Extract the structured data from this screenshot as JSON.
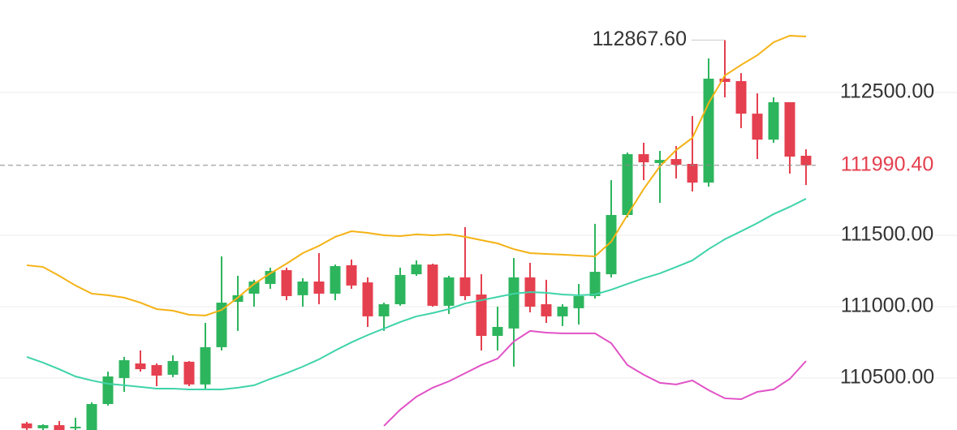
{
  "chart_data": {
    "type": "candlestick",
    "ylim": [
      110136,
      113148
    ],
    "yticks": [
      {
        "value": 110500,
        "label": "110500.00"
      },
      {
        "value": 111000,
        "label": "111000.00"
      },
      {
        "value": 111500,
        "label": "111500.00"
      },
      {
        "value": 112500,
        "label": "112500.00"
      }
    ],
    "grid": true,
    "up_color": "#2db55d",
    "down_color": "#e5404f",
    "open": [
      110182,
      110148,
      110170,
      110148,
      110136,
      110318,
      110500,
      110602,
      110591,
      110523,
      110614,
      110455,
      110716,
      111034,
      111091,
      111159,
      111256,
      111080,
      111176,
      111091,
      111290,
      111170,
      110932,
      111017,
      111227,
      111295,
      111006,
      111205,
      111085,
      110795,
      110847,
      111205,
      111017,
      110932,
      110989,
      111074,
      111227,
      111642,
      112068,
      112006,
      112034,
      112000,
      111869,
      112597,
      112580,
      112352,
      112170,
      112432,
      112057
    ],
    "high": [
      110193,
      110176,
      110199,
      110222,
      110330,
      110545,
      110648,
      110693,
      110602,
      110659,
      110619,
      110886,
      111352,
      111216,
      111188,
      111273,
      111273,
      111199,
      111375,
      111295,
      111330,
      111205,
      111028,
      111273,
      111324,
      111301,
      111216,
      111557,
      111227,
      111000,
      111341,
      111307,
      111188,
      111017,
      111159,
      111580,
      111886,
      112080,
      112148,
      112091,
      112125,
      112335,
      112739,
      112867.6,
      112636,
      112494,
      112466,
      112432,
      112102
    ],
    "low": [
      110136,
      110136,
      110136,
      110136,
      110136,
      110307,
      110403,
      110545,
      110443,
      110506,
      110443,
      110420,
      110693,
      110830,
      111000,
      111125,
      111045,
      111000,
      111017,
      111045,
      111125,
      110858,
      110830,
      111006,
      111216,
      111000,
      110949,
      111045,
      110693,
      110693,
      110580,
      110960,
      110886,
      110864,
      110875,
      111057,
      111205,
      111625,
      111886,
      111727,
      111898,
      111807,
      111841,
      112466,
      112250,
      112034,
      112148,
      111932,
      111852
    ],
    "close": [
      110148,
      110170,
      110136,
      110159,
      110318,
      110511,
      110625,
      110562,
      110517,
      110619,
      110455,
      110716,
      111028,
      111080,
      111176,
      111250,
      111074,
      111176,
      111091,
      111284,
      111148,
      110932,
      111017,
      111222,
      111295,
      111006,
      111205,
      111074,
      110795,
      110858,
      111205,
      111000,
      110932,
      111000,
      111074,
      111244,
      111642,
      112068,
      112011,
      112028,
      111994,
      111869,
      112597,
      112574,
      112352,
      112170,
      112432,
      112051,
      111990.4
    ],
    "lines": [
      {
        "color": "#f4b215",
        "values": [
          111290,
          111278,
          111216,
          111148,
          111091,
          111080,
          111063,
          111028,
          110983,
          110972,
          110943,
          110938,
          110977,
          111063,
          111159,
          111233,
          111301,
          111375,
          111426,
          111489,
          111528,
          111517,
          111500,
          111494,
          111506,
          111500,
          111506,
          111489,
          111466,
          111443,
          111403,
          111375,
          111369,
          111364,
          111358,
          111352,
          111455,
          111642,
          111824,
          111983,
          112097,
          112182,
          112426,
          112619,
          112693,
          112761,
          112852,
          112898,
          112892
        ]
      },
      {
        "color": "#3fd3a9",
        "values": [
          110648,
          110608,
          110562,
          110511,
          110483,
          110460,
          110449,
          110438,
          110426,
          110426,
          110420,
          110420,
          110420,
          110432,
          110449,
          110494,
          110534,
          110580,
          110631,
          110693,
          110750,
          110801,
          110847,
          110892,
          110932,
          110955,
          110983,
          111023,
          111045,
          111068,
          111091,
          111102,
          111097,
          111085,
          111080,
          111085,
          111119,
          111159,
          111199,
          111233,
          111278,
          111324,
          111403,
          111472,
          111528,
          111585,
          111648,
          111699,
          111756
        ]
      },
      {
        "color": "#e152c6",
        "values": [
          null,
          null,
          null,
          null,
          null,
          null,
          null,
          null,
          null,
          null,
          null,
          null,
          null,
          null,
          null,
          null,
          null,
          null,
          null,
          null,
          null,
          null,
          110165,
          110278,
          110369,
          110432,
          110477,
          110534,
          110591,
          110636,
          110756,
          110830,
          110818,
          110813,
          110813,
          110813,
          110744,
          110591,
          110523,
          110466,
          110455,
          110483,
          110415,
          110358,
          110352,
          110403,
          110420,
          110494,
          110619
        ]
      }
    ],
    "high_label": {
      "value": 112867.6,
      "label": "112867.60"
    },
    "last_price": {
      "value": 111990.4,
      "label": "111990.40"
    }
  }
}
